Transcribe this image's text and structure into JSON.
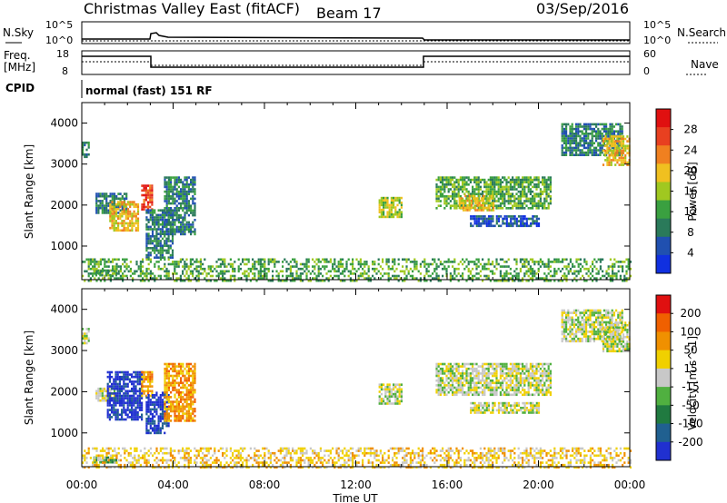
{
  "header": {
    "title": "Christmas Valley East (fitACF)",
    "beam": "Beam 17",
    "date": "03/Sep/2016"
  },
  "params": {
    "nsky_label": "N.Sky",
    "nsearch_label": "N.Search",
    "freq_label_1": "Freq.",
    "freq_label_2": "[MHz]",
    "nave_label": "Nave",
    "cpid_label": "CPID",
    "cpid_text": "normal (fast) 151 RF",
    "noise_left_ticks": [
      "10^5",
      "10^0"
    ],
    "noise_right_ticks": [
      "10^5",
      "10^0"
    ],
    "freq_left_ticks": [
      "18",
      "8"
    ],
    "freq_right_ticks": [
      "60",
      "0"
    ]
  },
  "colors": {
    "power_scale": [
      "#1030e0",
      "#2050b0",
      "#2a7a5a",
      "#3aa040",
      "#a0c820",
      "#f0c020",
      "#f08020",
      "#e84020",
      "#e01010"
    ],
    "velocity_scale": [
      "#2030d0",
      "#206090",
      "#207a40",
      "#50b040",
      "#c8c8c8",
      "#f0d000",
      "#f09000",
      "#f06000",
      "#e01010"
    ]
  },
  "chart_data": [
    {
      "type": "heatmap",
      "panel": "power",
      "ylabel": "Slant Range [km]",
      "xlabel": "",
      "y_ticks": [
        "1000",
        "2000",
        "3000",
        "4000"
      ],
      "x_ticks": [
        "00:00",
        "04:00",
        "08:00",
        "12:00",
        "16:00",
        "20:00",
        "00:00"
      ],
      "x_range_hours": [
        0,
        24
      ],
      "y_range_km": [
        180,
        4500
      ],
      "colorbar_label": "Power [dB]",
      "colorbar_ticks": [
        "28",
        "24",
        "20",
        "16",
        "12",
        "8",
        "4"
      ],
      "regions": [
        {
          "t0": 0.0,
          "t1": 0.3,
          "r0": 3200,
          "r1": 3550,
          "level": 2
        },
        {
          "t0": 0.6,
          "t1": 2.0,
          "r0": 1800,
          "r1": 2300,
          "level": 2
        },
        {
          "t0": 1.2,
          "t1": 2.5,
          "r0": 1400,
          "r1": 2100,
          "level": 5
        },
        {
          "t0": 2.6,
          "t1": 3.1,
          "r0": 1900,
          "r1": 2500,
          "level": 7
        },
        {
          "t0": 2.8,
          "t1": 4.0,
          "r0": 700,
          "r1": 1900,
          "level": 2
        },
        {
          "t0": 3.6,
          "t1": 5.0,
          "r0": 1300,
          "r1": 2700,
          "level": 2
        },
        {
          "t0": 13.0,
          "t1": 14.0,
          "r0": 1700,
          "r1": 2200,
          "level": 4
        },
        {
          "t0": 15.5,
          "t1": 20.5,
          "r0": 1900,
          "r1": 2700,
          "level": 3
        },
        {
          "t0": 16.5,
          "t1": 18.0,
          "r0": 1850,
          "r1": 2250,
          "level": 5
        },
        {
          "t0": 17.0,
          "t1": 20.0,
          "r0": 1500,
          "r1": 1750,
          "level": 1
        },
        {
          "t0": 21.0,
          "t1": 23.7,
          "r0": 3200,
          "r1": 4000,
          "level": 2
        },
        {
          "t0": 22.8,
          "t1": 24.0,
          "r0": 3000,
          "r1": 3700,
          "level": 5
        },
        {
          "t0": 0.5,
          "t1": 1.5,
          "r0": 280,
          "r1": 430,
          "level": 3
        },
        {
          "t0": 0.0,
          "t1": 24.0,
          "r0": 180,
          "r1": 700,
          "level": 3
        }
      ]
    },
    {
      "type": "heatmap",
      "panel": "velocity",
      "ylabel": "Slant Range [km]",
      "xlabel": "Time UT",
      "y_ticks": [
        "1000",
        "2000",
        "3000",
        "4000"
      ],
      "x_ticks": [
        "00:00",
        "04:00",
        "08:00",
        "12:00",
        "16:00",
        "20:00",
        "00:00"
      ],
      "x_range_hours": [
        0,
        24
      ],
      "y_range_km": [
        180,
        4500
      ],
      "colorbar_label": "Velocity [m s^-1]",
      "colorbar_ticks": [
        "200",
        "100",
        "50",
        "15",
        "-15",
        "-50",
        "-100",
        "-200"
      ],
      "regions": [
        {
          "t0": 0.0,
          "t1": 0.3,
          "r0": 3200,
          "r1": 3550,
          "level": 4
        },
        {
          "t0": 0.6,
          "t1": 1.5,
          "r0": 1800,
          "r1": 2100,
          "level": 4
        },
        {
          "t0": 1.1,
          "t1": 2.6,
          "r0": 1300,
          "r1": 2500,
          "level": 0
        },
        {
          "t0": 2.6,
          "t1": 3.1,
          "r0": 1900,
          "r1": 2500,
          "level": 6
        },
        {
          "t0": 2.8,
          "t1": 3.8,
          "r0": 1000,
          "r1": 2000,
          "level": 0
        },
        {
          "t0": 3.6,
          "t1": 5.0,
          "r0": 1300,
          "r1": 2700,
          "level": 6
        },
        {
          "t0": 13.0,
          "t1": 14.0,
          "r0": 1700,
          "r1": 2200,
          "level": 4
        },
        {
          "t0": 15.5,
          "t1": 20.5,
          "r0": 1900,
          "r1": 2700,
          "level": 4
        },
        {
          "t0": 17.0,
          "t1": 20.0,
          "r0": 1500,
          "r1": 1750,
          "level": 4
        },
        {
          "t0": 21.0,
          "t1": 23.7,
          "r0": 3200,
          "r1": 4000,
          "level": 4
        },
        {
          "t0": 22.8,
          "t1": 24.0,
          "r0": 3000,
          "r1": 3700,
          "level": 4
        },
        {
          "t0": 0.5,
          "t1": 1.5,
          "r0": 280,
          "r1": 430,
          "level": 3
        },
        {
          "t0": 0.0,
          "t1": 24.0,
          "r0": 180,
          "r1": 650,
          "level": 5
        }
      ]
    }
  ]
}
